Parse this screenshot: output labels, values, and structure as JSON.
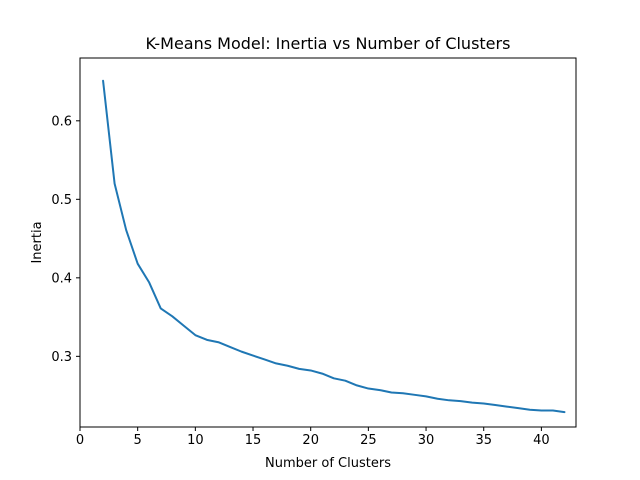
{
  "chart_data": {
    "type": "line",
    "title": "K-Means Model: Inertia vs Number of Clusters",
    "xlabel": "Number of Clusters",
    "ylabel": "Inertia",
    "xlim": [
      0,
      43
    ],
    "ylim": [
      0.21,
      0.68
    ],
    "xticks": [
      0,
      5,
      10,
      15,
      20,
      25,
      30,
      35,
      40
    ],
    "yticks": [
      0.3,
      0.4,
      0.5,
      0.6
    ],
    "grid": false,
    "line_color": "#1f77b4",
    "series": [
      {
        "x": [
          2,
          3,
          4,
          5,
          6,
          7,
          8,
          9,
          10,
          11,
          12,
          13,
          14,
          15,
          16,
          17,
          18,
          19,
          20,
          21,
          22,
          23,
          24,
          25,
          26,
          27,
          28,
          29,
          30,
          31,
          32,
          33,
          34,
          35,
          36,
          37,
          38,
          39,
          40,
          41,
          42
        ],
        "values": [
          0.651,
          0.52,
          0.461,
          0.418,
          0.394,
          0.361,
          0.351,
          0.339,
          0.327,
          0.321,
          0.318,
          0.312,
          0.306,
          0.301,
          0.296,
          0.291,
          0.288,
          0.284,
          0.282,
          0.278,
          0.272,
          0.269,
          0.263,
          0.259,
          0.257,
          0.254,
          0.253,
          0.251,
          0.249,
          0.246,
          0.244,
          0.243,
          0.241,
          0.24,
          0.238,
          0.236,
          0.234,
          0.232,
          0.231,
          0.231,
          0.229
        ]
      }
    ]
  }
}
